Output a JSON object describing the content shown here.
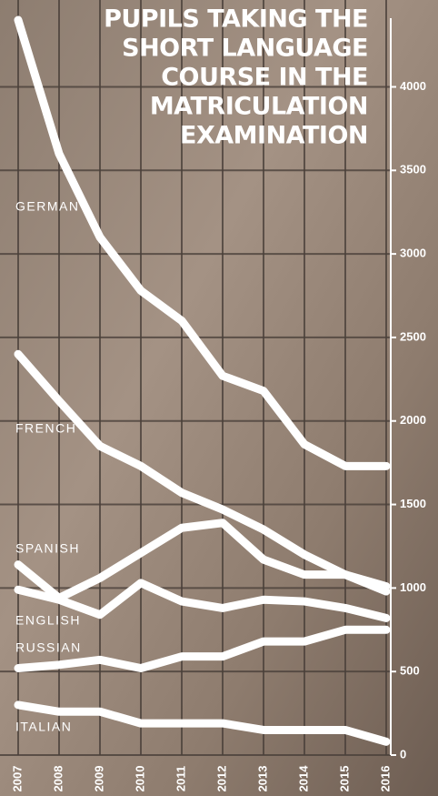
{
  "chart_data": {
    "type": "line",
    "title": [
      "PUPILS TAKING THE",
      "SHORT LANGUAGE",
      "COURSE IN THE",
      "MATRICULATION",
      "EXAMINATION"
    ],
    "categories": [
      "2007",
      "2008",
      "2009",
      "2010",
      "2011",
      "2012",
      "2013",
      "2014",
      "2015",
      "2016"
    ],
    "series": [
      {
        "name": "GERMAN",
        "color": "#ffffff",
        "values": [
          4400,
          3600,
          3100,
          2780,
          2600,
          2270,
          2180,
          1860,
          1730,
          1730
        ]
      },
      {
        "name": "FRENCH",
        "color": "#ffffff",
        "values": [
          2400,
          2120,
          1850,
          1730,
          1570,
          1470,
          1350,
          1200,
          1080,
          980
        ]
      },
      {
        "name": "SPANISH",
        "color": "#ffffff",
        "values": [
          1140,
          940,
          1060,
          1210,
          1360,
          1390,
          1170,
          1080,
          1080,
          1010
        ]
      },
      {
        "name": "ENGLISH",
        "color": "#ffffff",
        "values": [
          990,
          930,
          840,
          1030,
          920,
          880,
          930,
          920,
          880,
          820
        ]
      },
      {
        "name": "RUSSIAN",
        "color": "#ffffff",
        "values": [
          520,
          540,
          570,
          520,
          590,
          590,
          680,
          680,
          750,
          750
        ]
      },
      {
        "name": "ITALIAN",
        "color": "#ffffff",
        "values": [
          300,
          260,
          260,
          190,
          190,
          190,
          150,
          150,
          150,
          80
        ]
      }
    ],
    "ylim": [
      0,
      4520
    ],
    "yticks": [
      0,
      500,
      1000,
      1500,
      2000,
      2500,
      3000,
      3500,
      4000
    ],
    "grid": true
  }
}
